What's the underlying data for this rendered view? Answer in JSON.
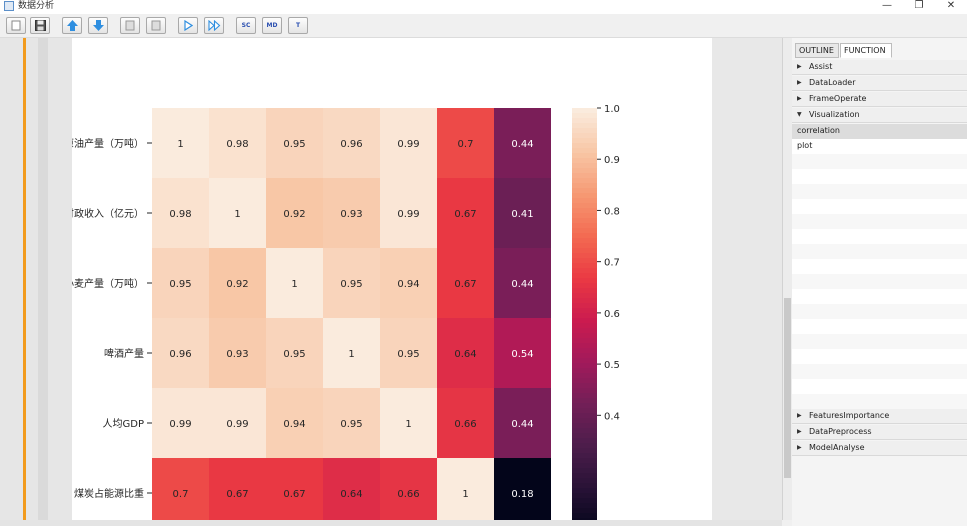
{
  "window": {
    "title": "数据分析",
    "controls": {
      "minimize": "—",
      "restore": "❐",
      "close": "✕"
    }
  },
  "toolbar": {
    "buttons": [
      {
        "id": "new",
        "icon": "new-file-icon"
      },
      {
        "id": "save",
        "icon": "save-icon"
      },
      {
        "id": "up",
        "icon": "arrow-up-icon",
        "color": "#2f8fe0"
      },
      {
        "id": "down",
        "icon": "arrow-down-icon",
        "color": "#2f8fe0"
      },
      {
        "id": "disabled1",
        "icon": "document-icon"
      },
      {
        "id": "disabled2",
        "icon": "document-icon"
      },
      {
        "id": "run",
        "icon": "play-icon",
        "color": "#2f8fe0"
      },
      {
        "id": "run-all",
        "icon": "fast-forward-icon",
        "color": "#2f8fe0"
      }
    ],
    "text_buttons": [
      "SC",
      "MD",
      "T"
    ]
  },
  "panel": {
    "tabs": [
      "OUTLINE",
      "FUNCTION"
    ],
    "active_tab": "FUNCTION",
    "sections_top": [
      {
        "label": "Assist",
        "expanded": false
      },
      {
        "label": "DataLoader",
        "expanded": false
      },
      {
        "label": "FrameOperate",
        "expanded": false
      },
      {
        "label": "Visualization",
        "expanded": true
      }
    ],
    "visualization_items": [
      "correlation",
      "plot"
    ],
    "selected_item": "correlation",
    "sections_bottom": [
      {
        "label": "FeaturesImportance",
        "expanded": false
      },
      {
        "label": "DataPreprocess",
        "expanded": false
      },
      {
        "label": "ModelAnalyse",
        "expanded": false
      }
    ]
  },
  "chart_data": {
    "type": "heatmap",
    "row_labels": [
      "原油产量（万吨）",
      "财政收入（亿元）",
      "小麦产量（万吨）",
      "啤酒产量",
      "人均GDP",
      "煤炭占能源比重"
    ],
    "matrix": [
      [
        1,
        0.98,
        0.95,
        0.96,
        0.99,
        0.7,
        0.44
      ],
      [
        0.98,
        1,
        0.92,
        0.93,
        0.99,
        0.67,
        0.41
      ],
      [
        0.95,
        0.92,
        1,
        0.95,
        0.94,
        0.67,
        0.44
      ],
      [
        0.96,
        0.93,
        0.95,
        1,
        0.95,
        0.64,
        0.54
      ],
      [
        0.99,
        0.99,
        0.94,
        0.95,
        1,
        0.66,
        0.44
      ],
      [
        0.7,
        0.67,
        0.67,
        0.64,
        0.66,
        1,
        0.18
      ]
    ],
    "colorbar": {
      "min": 0.18,
      "max": 1.0,
      "ticks": [
        "1.0",
        "0.9",
        "0.8",
        "0.7",
        "0.6",
        "0.5",
        "0.4"
      ]
    },
    "colormap": "rocket",
    "annotations": true
  }
}
